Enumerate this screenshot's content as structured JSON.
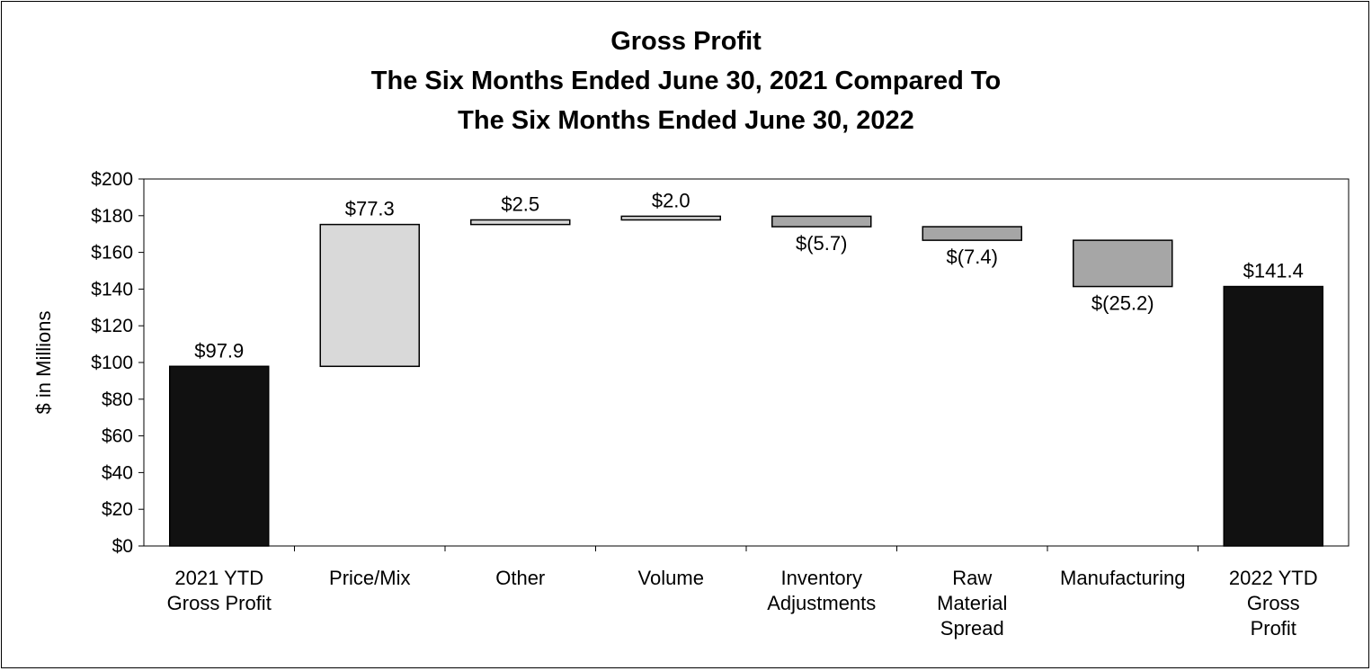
{
  "chart_data": {
    "type": "bar",
    "subtype": "waterfall",
    "title_lines": [
      "Gross Profit",
      "The Six Months Ended June 30, 2021 Compared To",
      "The Six Months Ended June 30, 2022"
    ],
    "ylabel": "$ in Millions",
    "ylim": [
      0,
      200
    ],
    "yticks": [
      0,
      20,
      40,
      60,
      80,
      100,
      120,
      140,
      160,
      180,
      200
    ],
    "ytick_labels": [
      "$0",
      "$20",
      "$40",
      "$60",
      "$80",
      "$100",
      "$120",
      "$140",
      "$160",
      "$180",
      "$200"
    ],
    "grid": false,
    "legend": "none",
    "colors": {
      "total": "#111111",
      "increase": "#d9d9d9",
      "decrease": "#a6a6a6",
      "outline": "#000000"
    },
    "bars": [
      {
        "category": [
          "2021 YTD",
          "Gross Profit"
        ],
        "kind": "total",
        "start": 0,
        "end": 97.9,
        "label": "$97.9"
      },
      {
        "category": [
          "Price/Mix"
        ],
        "kind": "increase",
        "start": 97.9,
        "end": 175.2,
        "label": "$77.3"
      },
      {
        "category": [
          "Other"
        ],
        "kind": "increase",
        "start": 175.2,
        "end": 177.7,
        "label": "$2.5"
      },
      {
        "category": [
          "Volume"
        ],
        "kind": "increase",
        "start": 177.7,
        "end": 179.7,
        "label": "$2.0"
      },
      {
        "category": [
          "Inventory",
          "Adjustments"
        ],
        "kind": "decrease",
        "start": 179.7,
        "end": 174.0,
        "label": "$(5.7)"
      },
      {
        "category": [
          "Raw",
          "Material",
          "Spread"
        ],
        "kind": "decrease",
        "start": 174.0,
        "end": 166.6,
        "label": "$(7.4)"
      },
      {
        "category": [
          "Manufacturing"
        ],
        "kind": "decrease",
        "start": 166.6,
        "end": 141.4,
        "label": "$(25.2)"
      },
      {
        "category": [
          "2022 YTD",
          "Gross",
          "Profit"
        ],
        "kind": "total",
        "start": 0,
        "end": 141.4,
        "label": "$141.4"
      }
    ]
  }
}
